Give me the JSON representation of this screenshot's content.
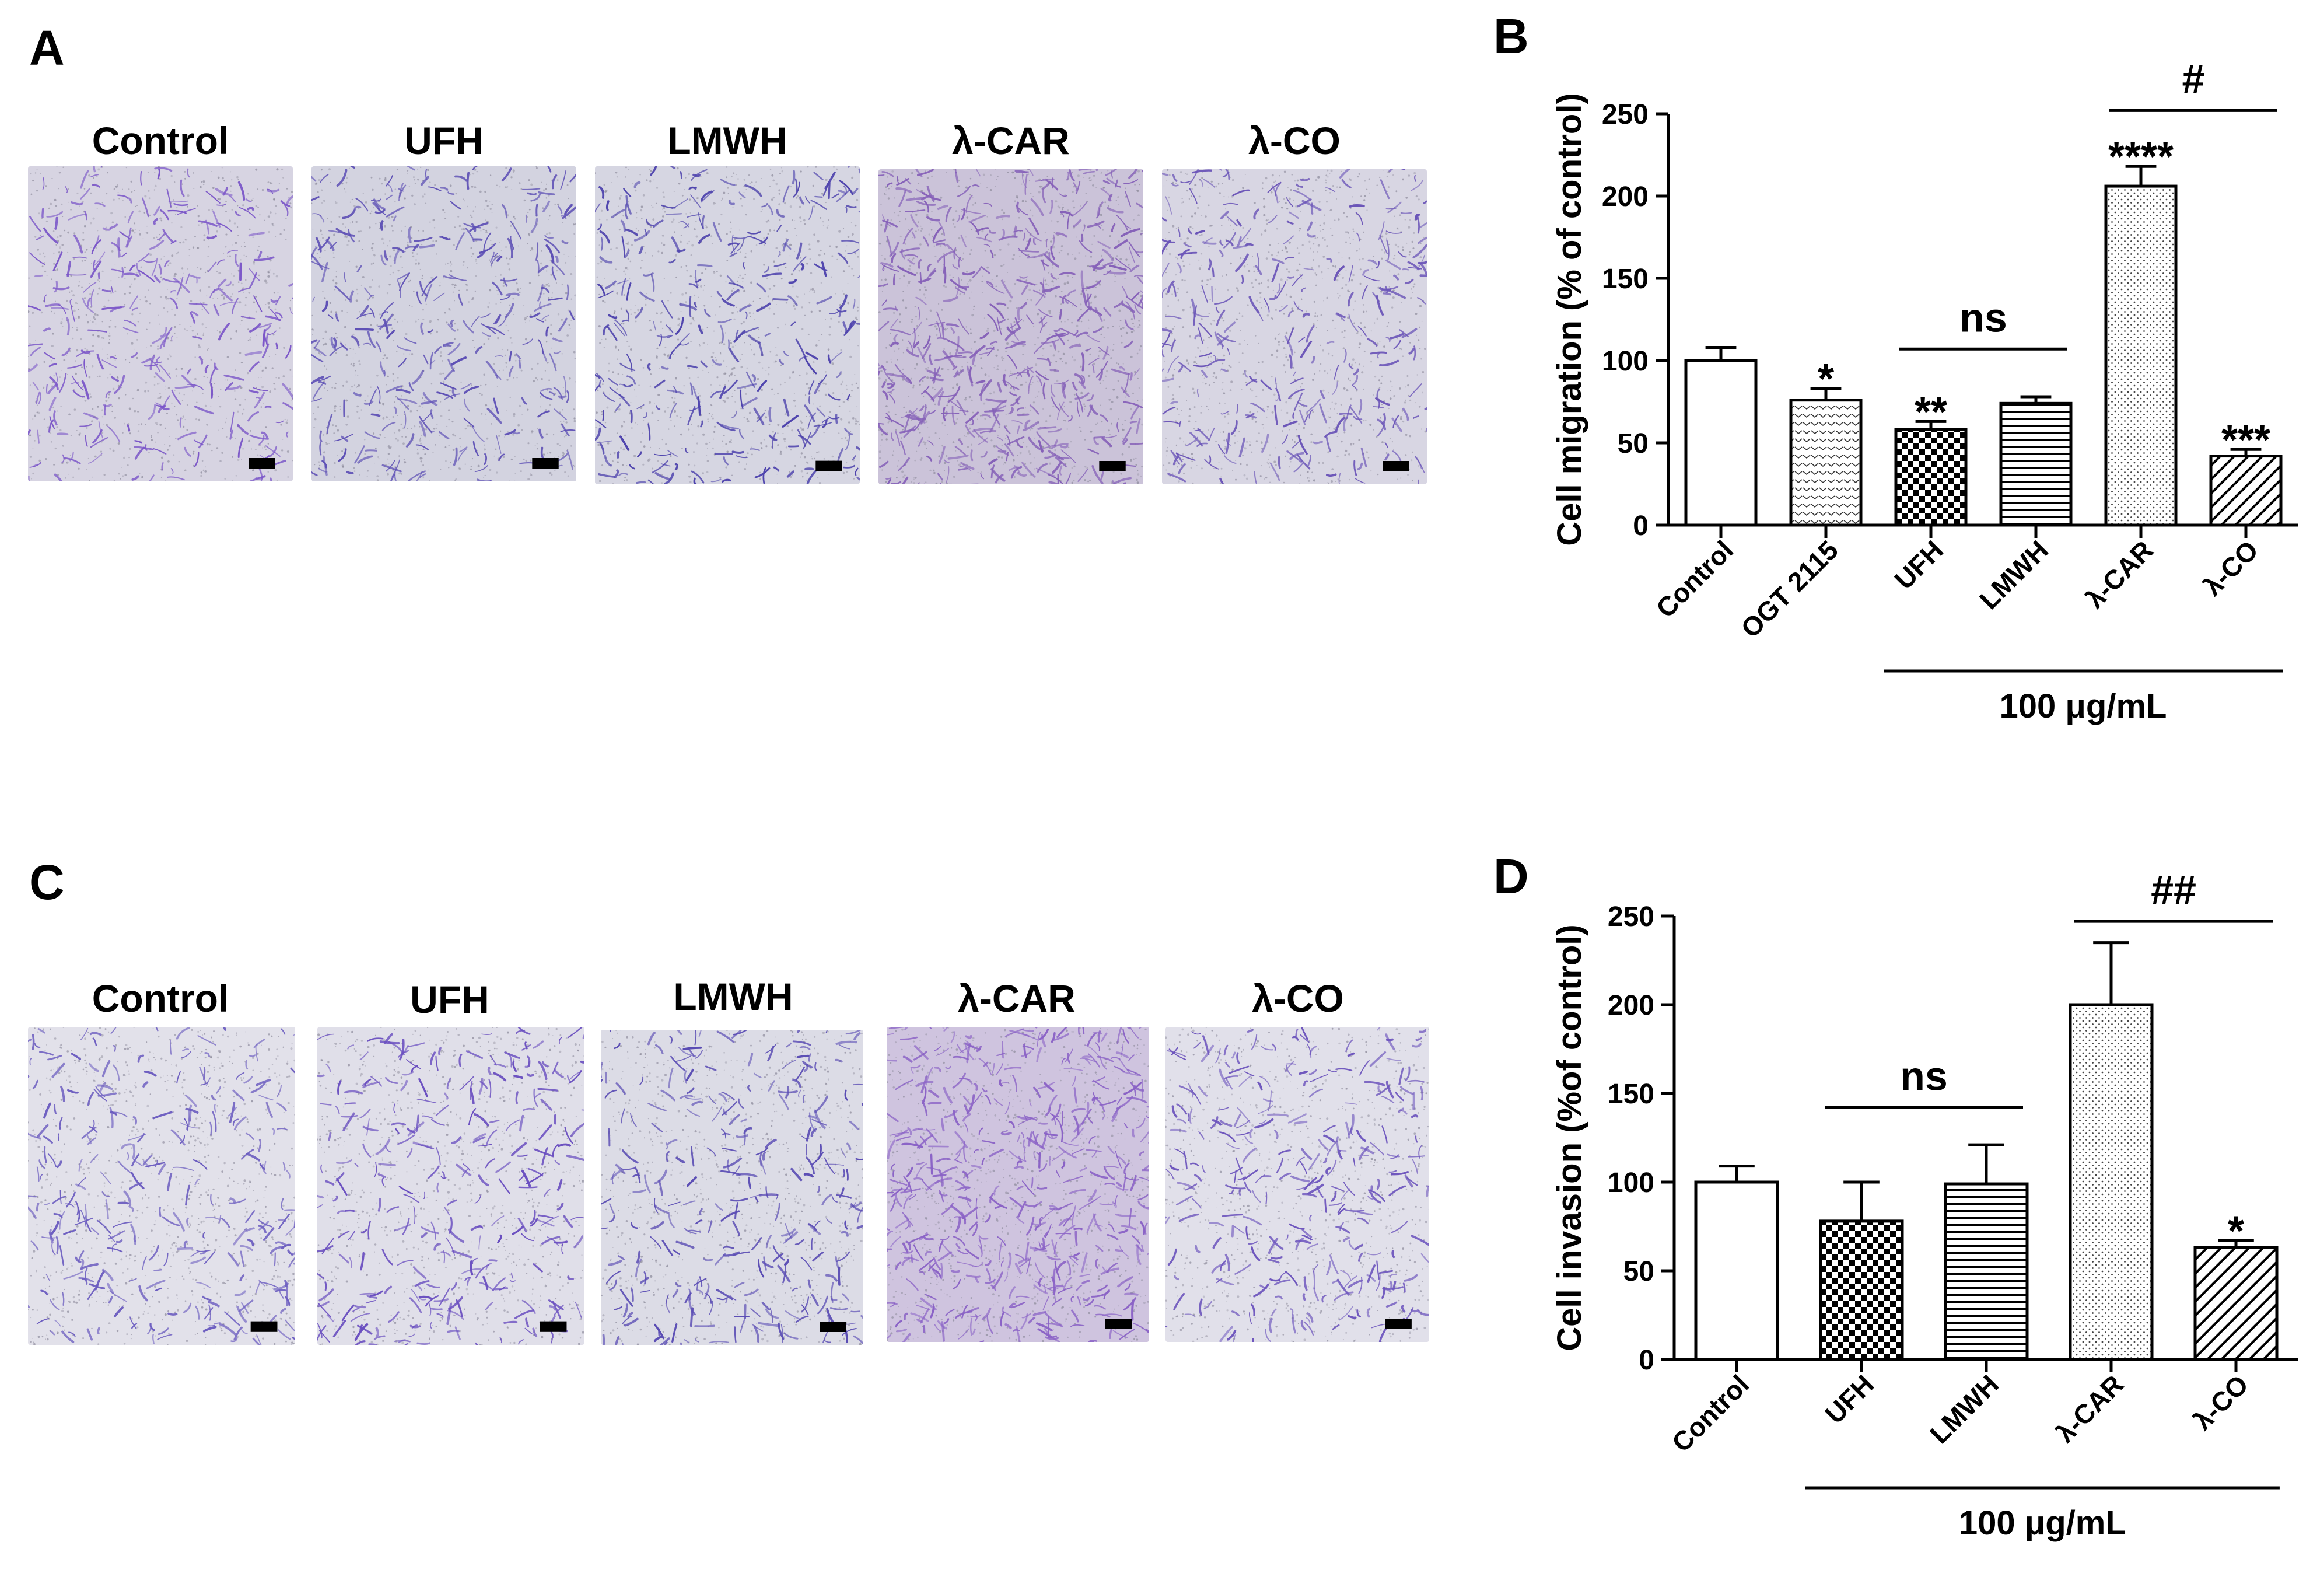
{
  "panels": {
    "A": {
      "letter": "A",
      "images": [
        {
          "label": "Control",
          "density": "medium",
          "tint": "#7a55c8",
          "bg": "#d7d4e2"
        },
        {
          "label": "UFH",
          "density": "medium",
          "tint": "#5d4fb5",
          "bg": "#d3d3e0"
        },
        {
          "label": "LMWH",
          "density": "medium",
          "tint": "#4e43ad",
          "bg": "#d6d6e2"
        },
        {
          "label": "λ-CAR",
          "density": "high",
          "tint": "#8560b8",
          "bg": "#cbc3d9"
        },
        {
          "label": "λ-CO",
          "density": "medium",
          "tint": "#6b55b8",
          "bg": "#d8d6e3"
        }
      ]
    },
    "C": {
      "letter": "C",
      "images": [
        {
          "label": "Control",
          "density": "medium",
          "tint": "#6c5dc0",
          "bg": "#e2e1ea"
        },
        {
          "label": "UFH",
          "density": "medium",
          "tint": "#6a4fc0",
          "bg": "#e0dfe9"
        },
        {
          "label": "LMWH",
          "density": "medium",
          "tint": "#5a4cb4",
          "bg": "#dcdce6"
        },
        {
          "label": "λ-CAR",
          "density": "high",
          "tint": "#8a62c6",
          "bg": "#cfc4df"
        },
        {
          "label": "λ-CO",
          "density": "medium",
          "tint": "#6d55bd",
          "bg": "#e1e0ea"
        }
      ]
    }
  },
  "chart_data": [
    {
      "panel": "B",
      "type": "bar",
      "ylabel": "Cell migration (% of control)",
      "ylim": [
        0,
        250
      ],
      "yticks": [
        0,
        50,
        100,
        150,
        200,
        250
      ],
      "categories": [
        "Control",
        "OGT 2115",
        "UFH",
        "LMWH",
        "λ-CAR",
        "λ-CO"
      ],
      "values": [
        100,
        76,
        58,
        74,
        206,
        42
      ],
      "errors": [
        8,
        7,
        5,
        4,
        12,
        4
      ],
      "patterns": [
        "white",
        "chevron",
        "checker",
        "hlines",
        "dots",
        "diagonal"
      ],
      "significance": [
        "",
        "*",
        "**",
        "",
        "****",
        "***"
      ],
      "group_label": "100 μg/mL",
      "group_categories": [
        "UFH",
        "LMWH",
        "λ-CAR",
        "λ-CO"
      ],
      "brackets": [
        {
          "from": "UFH",
          "to": "LMWH",
          "label": "ns",
          "y": 107
        },
        {
          "from": "λ-CAR",
          "to": "λ-CO",
          "label": "#",
          "y": 252
        }
      ]
    },
    {
      "panel": "D",
      "type": "bar",
      "ylabel": "Cell invasion (%of control)",
      "ylim": [
        0,
        250
      ],
      "yticks": [
        0,
        50,
        100,
        150,
        200,
        250
      ],
      "categories": [
        "Control",
        "UFH",
        "LMWH",
        "λ-CAR",
        "λ-CO"
      ],
      "values": [
        100,
        78,
        99,
        200,
        63
      ],
      "errors": [
        9,
        22,
        22,
        35,
        4
      ],
      "patterns": [
        "white",
        "checker",
        "hlines",
        "dots",
        "diagonal"
      ],
      "significance": [
        "",
        "",
        "",
        "",
        "*"
      ],
      "group_label": "100 μg/mL",
      "group_categories": [
        "UFH",
        "LMWH",
        "λ-CAR",
        "λ-CO"
      ],
      "brackets": [
        {
          "from": "UFH",
          "to": "LMWH",
          "label": "ns",
          "y": 142
        },
        {
          "from": "λ-CAR",
          "to": "λ-CO",
          "label": "##",
          "y": 247
        }
      ]
    }
  ]
}
